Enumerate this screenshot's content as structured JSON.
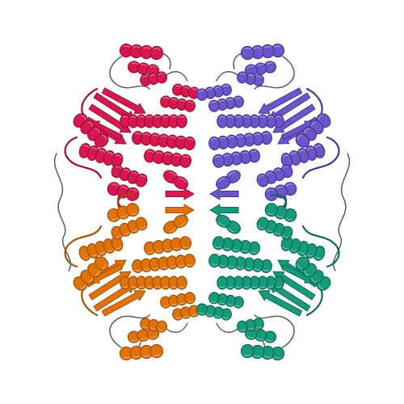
{
  "scene": {
    "background": "#ffffff",
    "coil_color": "#5a5a5a",
    "chains": [
      {
        "name": "chain-top-left",
        "color": "#d6184f",
        "dark": "#9a0f38"
      },
      {
        "name": "chain-top-right",
        "color": "#6b55c8",
        "dark": "#453592"
      },
      {
        "name": "chain-bottom-left",
        "color": "#e0720a",
        "dark": "#a34f04"
      },
      {
        "name": "chain-bottom-right",
        "color": "#159a7c",
        "dark": "#0c6a55"
      }
    ]
  }
}
